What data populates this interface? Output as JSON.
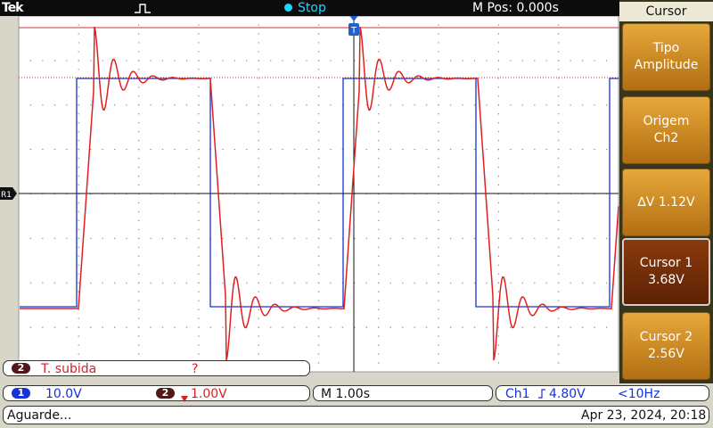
{
  "header": {
    "brand": "Tek",
    "trigger_icon": "trigger-pulse-icon",
    "run_state": "Stop",
    "run_state_color": "#1fd4ff",
    "horizontal_position": "M Pos: 0.000s"
  },
  "ground_marker": "R1",
  "side_menu": {
    "title": "Cursor",
    "items": [
      {
        "line1": "Tipo",
        "line2": "Amplitude"
      },
      {
        "line1": "Origem",
        "line2": "Ch2"
      },
      {
        "line1": "∆V 1.12V",
        "line2": ""
      },
      {
        "line1": "Cursor 1",
        "line2": "3.68V"
      },
      {
        "line1": "Cursor 2",
        "line2": "2.56V"
      }
    ]
  },
  "measurement": {
    "channel": "2",
    "label": "T. subida",
    "value": "?"
  },
  "status_bar": {
    "ch1": {
      "id": "1",
      "scale": "10.0V",
      "color": "#1432d8"
    },
    "ch2": {
      "id": "2",
      "scale": "1.00V",
      "color": "#d22222"
    },
    "timebase": "M 1.00s",
    "trigger": {
      "source": "Ch1",
      "slope_icon": "rising-edge-icon",
      "level": "4.80V",
      "freq": "<10Hz"
    }
  },
  "footer": {
    "message": "Aguarde...",
    "datetime": "Apr 23, 2024, 20:18"
  },
  "colors": {
    "ch1": "#1432d8",
    "ch2": "#e02020",
    "cursor_line": "#d03030",
    "grid": "#9a9a9a",
    "screen_bg": "#ffffff"
  }
}
